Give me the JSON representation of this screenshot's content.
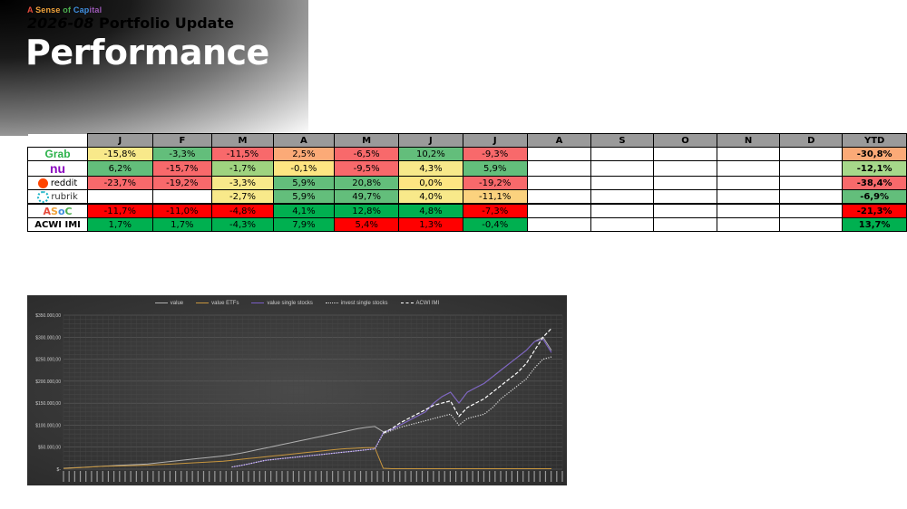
{
  "header": {
    "brand_parts": [
      "A ",
      "Sense ",
      "of ",
      "Cap",
      "ital"
    ],
    "subtitle_year": "2026-08",
    "subtitle_rest": " Portfolio Update",
    "title": "Performance"
  },
  "table": {
    "months": [
      "J",
      "F",
      "M",
      "A",
      "M",
      "J",
      "J",
      "A",
      "S",
      "O",
      "N",
      "D",
      "YTD"
    ],
    "rows": [
      {
        "name": "Grab",
        "logo": "grab-logo",
        "values": [
          "-15,8%",
          "-3,3%",
          "-11,5%",
          "2,5%",
          "-6,5%",
          "10,2%",
          "-9,3%",
          "",
          "",
          "",
          "",
          "",
          "-30,8%"
        ]
      },
      {
        "name": "nu",
        "logo": "nu-logo",
        "values": [
          "6,2%",
          "-15,7%",
          "-1,7%",
          "-0,1%",
          "-9,5%",
          "4,3%",
          "5,9%",
          "",
          "",
          "",
          "",
          "",
          "-12,1%"
        ]
      },
      {
        "name": "reddit",
        "logo": "reddit-logo",
        "values": [
          "-23,7%",
          "-19,2%",
          "-3,3%",
          "5,9%",
          "20,8%",
          "0,0%",
          "-19,2%",
          "",
          "",
          "",
          "",
          "",
          "-38,4%"
        ]
      },
      {
        "name": "rubrik",
        "logo": "rubrik-logo",
        "values": [
          "",
          "",
          "-2,7%",
          "5,9%",
          "49,7%",
          "4,0%",
          "-11,1%",
          "",
          "",
          "",
          "",
          "",
          "-6,9%"
        ]
      },
      {
        "name": "ASoC",
        "logo": "asoc-logo",
        "values": [
          "-11,7%",
          "-11,0%",
          "-4,8%",
          "4,1%",
          "12,8%",
          "4,8%",
          "-7,3%",
          "",
          "",
          "",
          "",
          "",
          "-21,3%"
        ]
      },
      {
        "name": "ACWI IMI",
        "logo": "acwi-label",
        "values": [
          "1,7%",
          "1,7%",
          "-4,3%",
          "7,9%",
          "5,4%",
          "1,3%",
          "-0,4%",
          "",
          "",
          "",
          "",
          "",
          "13,7%"
        ]
      }
    ],
    "colors": {
      "grab": [
        "#f8e98a",
        "#63be7b",
        "#f8696b",
        "#fbaa77",
        "#f8696b",
        "#63be7b",
        "#f8696b",
        "",
        "",
        "",
        "",
        "",
        "#fbaa77"
      ],
      "nu": [
        "#63be7b",
        "#f8696b",
        "#9fd37f",
        "#fee582",
        "#f8696b",
        "#f8e98a",
        "#63be7b",
        "",
        "",
        "",
        "",
        "",
        "#a6d88a"
      ],
      "reddit": [
        "#f8696b",
        "#f8696b",
        "#f8e98a",
        "#63be7b",
        "#63be7b",
        "#fee582",
        "#f8696b",
        "",
        "",
        "",
        "",
        "",
        "#f8696b"
      ],
      "rubrik": [
        "#ffffff",
        "#ffffff",
        "#f8e98a",
        "#63be7b",
        "#63be7b",
        "#f8e98a",
        "#fbd27e",
        "",
        "",
        "",
        "",
        "",
        "#63be7b"
      ],
      "asoc": [
        "#ff0000",
        "#ff0000",
        "#ff0000",
        "#00b050",
        "#00b050",
        "#00b050",
        "#ff0000",
        "",
        "",
        "",
        "",
        "",
        "#ff0000"
      ],
      "acwi": [
        "#00b050",
        "#00b050",
        "#00b050",
        "#00b050",
        "#ff0000",
        "#ff0000",
        "#00b050",
        "",
        "",
        "",
        "",
        "",
        "#00b050"
      ]
    }
  },
  "chart_data": {
    "type": "line",
    "series": [
      {
        "name": "value",
        "color": "#b0b0b0",
        "style": "solid",
        "values": [
          2000,
          3000,
          4000,
          5000,
          6000,
          7000,
          8000,
          9000,
          10000,
          11000,
          12000,
          14000,
          16000,
          18000,
          20000,
          22000,
          24000,
          26000,
          28000,
          30000,
          33000,
          36000,
          40000,
          44000,
          48000,
          52000,
          56000,
          60000,
          64000,
          68000,
          72000,
          76000,
          80000,
          84000,
          88000,
          92000,
          95000,
          97000,
          85000,
          90000,
          100000,
          110000,
          120000,
          130000,
          150000,
          165000,
          175000,
          150000,
          175000,
          185000,
          195000,
          210000,
          225000,
          240000,
          255000,
          270000,
          290000,
          300000,
          270000
        ]
      },
      {
        "name": "value ETFs",
        "color": "#c8963e",
        "style": "solid",
        "values": [
          1500,
          2500,
          3500,
          4500,
          5500,
          6500,
          7000,
          7500,
          8000,
          8500,
          9000,
          10000,
          11000,
          12000,
          13000,
          14000,
          15000,
          16000,
          17000,
          18000,
          20000,
          22000,
          24000,
          26000,
          28000,
          30000,
          32000,
          34000,
          36000,
          38000,
          40000,
          42000,
          44000,
          46000,
          47000,
          48000,
          49000,
          49000,
          2000,
          1000,
          1000,
          1000,
          1000,
          1000,
          1000,
          1000,
          1000,
          1000,
          1000,
          1000,
          1000,
          1000,
          1000,
          1000,
          1000,
          1000,
          1000,
          1000,
          1000
        ]
      },
      {
        "name": "value single stocks",
        "color": "#7a5ec8",
        "style": "solid",
        "values": [
          0,
          0,
          0,
          0,
          0,
          0,
          0,
          0,
          0,
          0,
          0,
          0,
          0,
          0,
          0,
          0,
          0,
          0,
          0,
          0,
          5000,
          8000,
          12000,
          16000,
          20000,
          22000,
          24000,
          26000,
          28000,
          30000,
          32000,
          34000,
          36000,
          38000,
          40000,
          42000,
          44000,
          46000,
          83000,
          90000,
          100000,
          110000,
          120000,
          130000,
          150000,
          165000,
          175000,
          150000,
          175000,
          185000,
          195000,
          210000,
          225000,
          240000,
          255000,
          270000,
          290000,
          295000,
          265000
        ]
      },
      {
        "name": "invest single stocks",
        "color": "#dddddd",
        "style": "dotted",
        "values": [
          0,
          0,
          0,
          0,
          0,
          0,
          0,
          0,
          0,
          0,
          0,
          0,
          0,
          0,
          0,
          0,
          0,
          0,
          0,
          0,
          5000,
          8000,
          12000,
          16000,
          20000,
          22000,
          24000,
          26000,
          28000,
          30000,
          32000,
          34000,
          36000,
          38000,
          40000,
          42000,
          44000,
          46000,
          80000,
          88000,
          95000,
          100000,
          105000,
          110000,
          115000,
          120000,
          125000,
          100000,
          115000,
          120000,
          125000,
          140000,
          160000,
          175000,
          190000,
          205000,
          230000,
          250000,
          255000
        ]
      },
      {
        "name": "ACWI IMI",
        "color": "#ffffff",
        "style": "dashed",
        "values": [
          0,
          0,
          0,
          0,
          0,
          0,
          0,
          0,
          0,
          0,
          0,
          0,
          0,
          0,
          0,
          0,
          0,
          0,
          0,
          0,
          0,
          0,
          0,
          0,
          0,
          0,
          0,
          0,
          0,
          0,
          0,
          0,
          0,
          0,
          0,
          0,
          0,
          0,
          82000,
          92000,
          105000,
          115000,
          125000,
          135000,
          145000,
          150000,
          155000,
          120000,
          140000,
          150000,
          160000,
          175000,
          190000,
          205000,
          220000,
          240000,
          270000,
          300000,
          320000
        ]
      }
    ],
    "ylim": [
      0,
      350000
    ],
    "yticks": [
      "$-",
      "$50.000,00",
      "$100.000,00",
      "$150.000,00",
      "$200.000,00",
      "$250.000,00",
      "$300.000,00",
      "$350.000,00"
    ],
    "grid": true,
    "legend": "top-center"
  }
}
